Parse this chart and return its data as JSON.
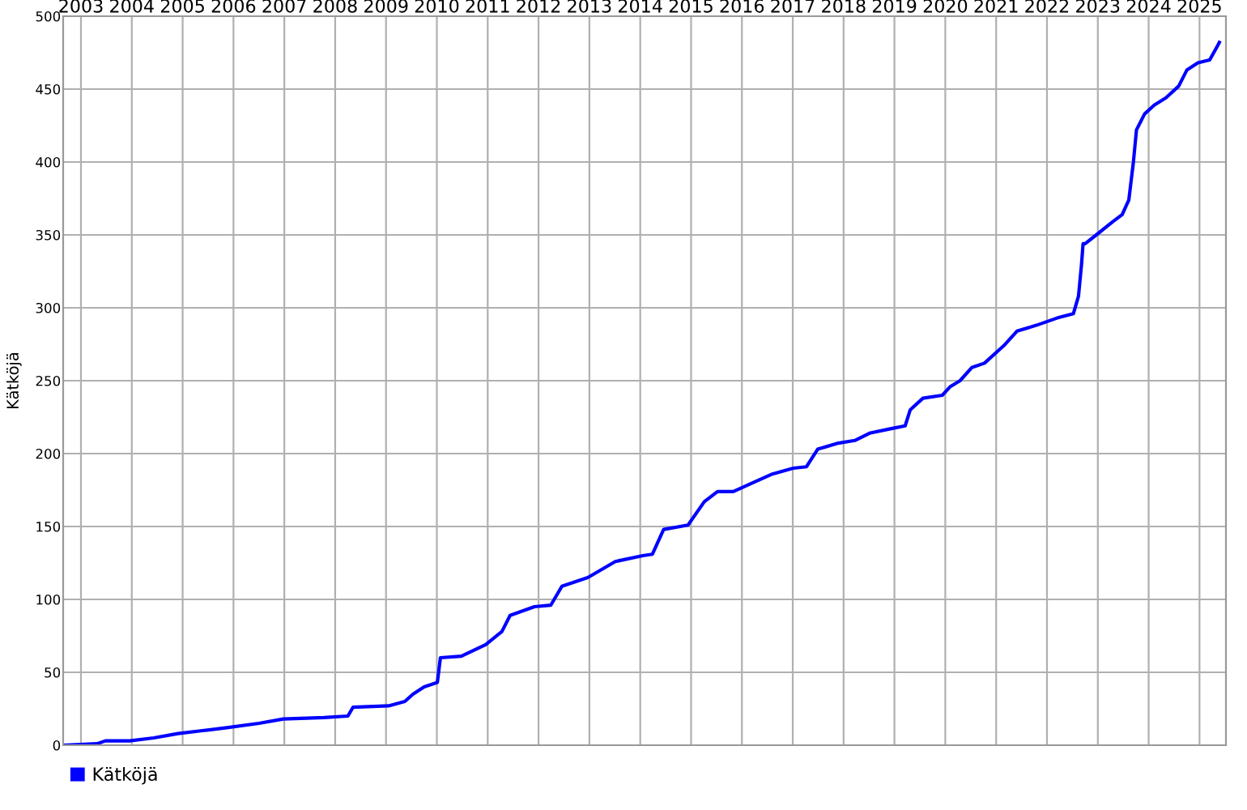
{
  "chart_data": {
    "type": "line",
    "ylabel": "Kätköjä",
    "x": [
      2002.65,
      2003.32,
      2003.48,
      2003.96,
      2004.43,
      2004.91,
      2005.39,
      2005.87,
      2006.5,
      2006.98,
      2007.78,
      2008.25,
      2008.35,
      2009.05,
      2009.37,
      2009.53,
      2009.75,
      2010.01,
      2010.07,
      2010.48,
      2010.96,
      2011.28,
      2011.44,
      2011.92,
      2012.24,
      2012.46,
      2012.97,
      2013.51,
      2014.05,
      2014.24,
      2014.46,
      2014.94,
      2015.26,
      2015.52,
      2015.83,
      2016.28,
      2016.6,
      2017.01,
      2017.27,
      2017.49,
      2017.87,
      2018.22,
      2018.51,
      2018.92,
      2019.21,
      2019.31,
      2019.56,
      2019.94,
      2020.1,
      2020.29,
      2020.52,
      2020.77,
      2021.15,
      2021.41,
      2021.79,
      2022.2,
      2022.52,
      2022.62,
      2022.68,
      2022.71,
      2022.75,
      2022.97,
      2023.29,
      2023.48,
      2023.61,
      2023.7,
      2023.76,
      2023.92,
      2024.11,
      2024.34,
      2024.59,
      2024.75,
      2024.97,
      2025.2,
      2025.36,
      2025.39
    ],
    "series": [
      {
        "name": "Kätköjä",
        "color": "#0000ff",
        "values": [
          0,
          1,
          3,
          3,
          5,
          8,
          10,
          12,
          15,
          18,
          19,
          20,
          26,
          27,
          30,
          35,
          40,
          43,
          60,
          61,
          69,
          78,
          89,
          95,
          96,
          109,
          115,
          126,
          130,
          131,
          148,
          151,
          167,
          174,
          174,
          181,
          186,
          190,
          191,
          203,
          207,
          209,
          214,
          217,
          219,
          230,
          238,
          240,
          246,
          250,
          259,
          262,
          274,
          284,
          288,
          293,
          296,
          308,
          330,
          344,
          344,
          350,
          359,
          364,
          374,
          400,
          422,
          433,
          439,
          444,
          452,
          463,
          468,
          470,
          480,
          482
        ]
      }
    ],
    "xlim": [
      2002.65,
      2025.52
    ],
    "xticks": [
      2003,
      2004,
      2005,
      2006,
      2007,
      2008,
      2009,
      2010,
      2011,
      2012,
      2013,
      2014,
      2015,
      2016,
      2017,
      2018,
      2019,
      2020,
      2021,
      2022,
      2023,
      2024,
      2025
    ],
    "ylim": [
      0,
      500
    ],
    "yticks": [
      0,
      50,
      100,
      150,
      200,
      250,
      300,
      350,
      400,
      450,
      500
    ],
    "grid": true,
    "legend": "bottom left",
    "marker": "none",
    "line_style": "solid"
  }
}
